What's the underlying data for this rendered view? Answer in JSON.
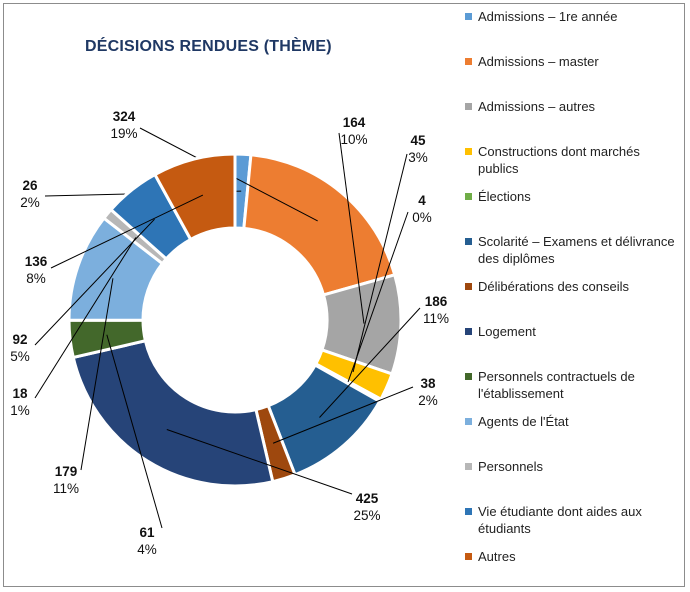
{
  "chart_data": {
    "type": "pie",
    "variant": "donut",
    "title": "DÉCISIONS RENDUES (THÈME)",
    "legend_position": "right",
    "slices": [
      {
        "name": "Admissions – 1re année",
        "value": 26,
        "percent_label": "2%",
        "color": "#5b9bd5"
      },
      {
        "name": "Admissions – master",
        "value": 324,
        "percent_label": "19%",
        "color": "#ed7d31"
      },
      {
        "name": "Admissions – autres",
        "value": 164,
        "percent_label": "10%",
        "color": "#a5a5a5"
      },
      {
        "name": "Constructions dont marchés publics",
        "value": 45,
        "percent_label": "3%",
        "color": "#ffc000"
      },
      {
        "name": "Élections",
        "value": 4,
        "percent_label": "0%",
        "color": "#70ad47"
      },
      {
        "name": "Scolarité – Examens et délivrance des diplômes",
        "value": 186,
        "percent_label": "11%",
        "color": "#255e91"
      },
      {
        "name": "Délibérations des conseils",
        "value": 38,
        "percent_label": "2%",
        "color": "#9e480e"
      },
      {
        "name": "Logement",
        "value": 425,
        "percent_label": "25%",
        "color": "#264478"
      },
      {
        "name": "Personnels contractuels de l'établissement",
        "value": 61,
        "percent_label": "4%",
        "color": "#43682b"
      },
      {
        "name": "Agents de l'État",
        "value": 179,
        "percent_label": "11%",
        "color": "#7cafdd"
      },
      {
        "name": "Personnels",
        "value": 18,
        "percent_label": "1%",
        "color": "#b7b7b7"
      },
      {
        "name": "Vie étudiante dont aides aux étudiants",
        "value": 92,
        "percent_label": "5%",
        "color": "#2e75b6"
      },
      {
        "name": "Autres",
        "value": 136,
        "percent_label": "8%",
        "color": "#c55a11"
      }
    ]
  }
}
